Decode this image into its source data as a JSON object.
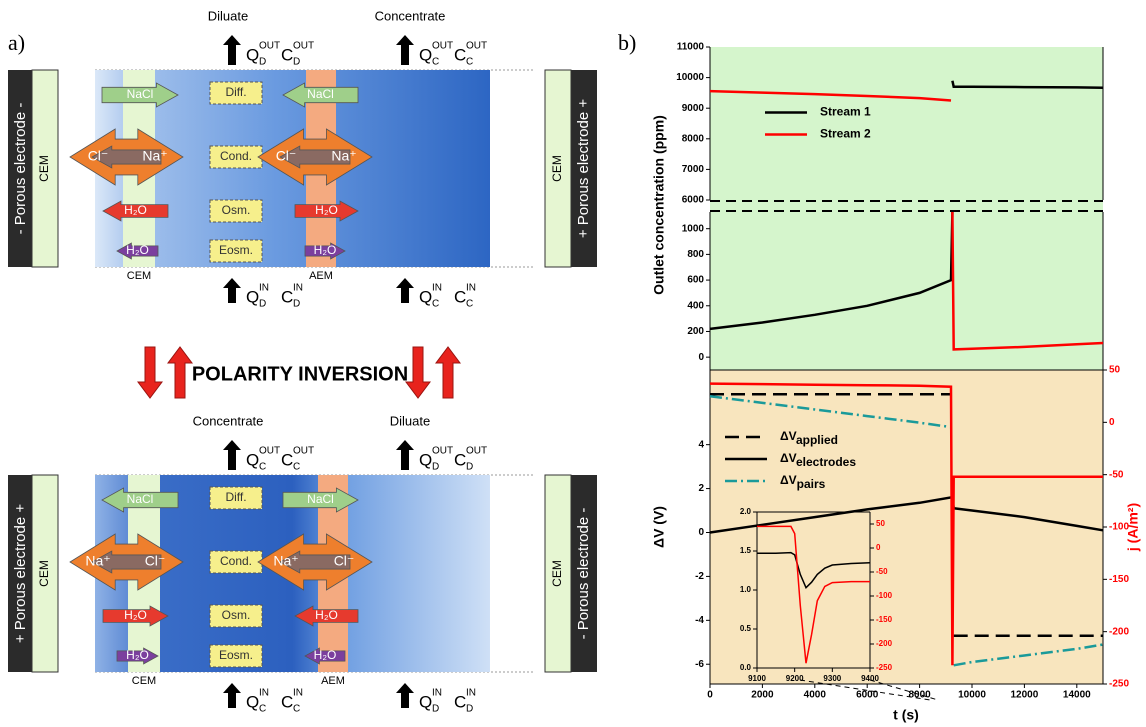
{
  "panel_a": {
    "label": "a)",
    "polarity_inversion": "POLARITY INVERSION",
    "top": {
      "outlets": [
        "Diluate",
        "Concentrate"
      ],
      "flows_out": [
        {
          "q": "Q",
          "c": "C",
          "sub": "D",
          "sup": "OUT"
        },
        {
          "q": "Q",
          "c": "C",
          "sub": "C",
          "sup": "OUT"
        }
      ],
      "flows_in": [
        {
          "q": "Q",
          "c": "C",
          "sub": "D",
          "sup": "IN"
        },
        {
          "q": "Q",
          "c": "C",
          "sub": "C",
          "sup": "IN"
        }
      ],
      "processes": [
        "Diff.",
        "Cond.",
        "Osm.",
        "Eosm."
      ],
      "membranes": [
        "CEM",
        "AEM"
      ],
      "left_electrode": {
        "name": "- Porous electrode -",
        "membrane": "CEM"
      },
      "right_electrode": {
        "name": "+ Porous electrode +",
        "membrane": "CEM"
      },
      "arrows": {
        "salt": [
          "NaCl",
          "NaCl"
        ],
        "ions_left": [
          "Cl⁻",
          "Na⁺"
        ],
        "ions_right": [
          "Cl⁻",
          "Na⁺"
        ],
        "water_osm": [
          "H₂O",
          "H₂O"
        ],
        "water_eosm": [
          "H₂O",
          "H₂O"
        ]
      }
    },
    "bottom": {
      "outlets": [
        "Concentrate",
        "Diluate"
      ],
      "flows_out": [
        {
          "q": "Q",
          "c": "C",
          "sub": "C",
          "sup": "OUT"
        },
        {
          "q": "Q",
          "c": "C",
          "sub": "D",
          "sup": "OUT"
        }
      ],
      "flows_in": [
        {
          "q": "Q",
          "c": "C",
          "sub": "C",
          "sup": "IN"
        },
        {
          "q": "Q",
          "c": "C",
          "sub": "D",
          "sup": "IN"
        }
      ],
      "processes": [
        "Diff.",
        "Cond.",
        "Osm.",
        "Eosm."
      ],
      "membranes": [
        "CEM",
        "AEM"
      ],
      "left_electrode": {
        "name": "+ Porous electrode +",
        "membrane": "CEM"
      },
      "right_electrode": {
        "name": "- Porous electrode -",
        "membrane": "CEM"
      },
      "arrows": {
        "salt": [
          "NaCl",
          "NaCl"
        ],
        "ions_left": [
          "Na⁺",
          "Cl⁻"
        ],
        "ions_right": [
          "Na⁺",
          "Cl⁻"
        ],
        "water_osm": [
          "H₂O",
          "H₂O"
        ],
        "water_eosm": [
          "H₂O",
          "H₂O"
        ]
      }
    }
  },
  "panel_b": {
    "label": "b)"
  },
  "chart_data": [
    {
      "type": "line",
      "y_label": "Outlet concentration (ppm)",
      "background": "#d5f5cc",
      "legend": "center left",
      "x": [
        0,
        2000,
        4000,
        6000,
        8000,
        9200,
        9250,
        9300,
        10000,
        12000,
        14000,
        15000
      ],
      "xlim": [
        0,
        15000
      ],
      "ylim": [
        6000,
        11000
      ],
      "yticks": [
        6000,
        7000,
        8000,
        9000,
        10000,
        11000
      ],
      "series": [
        {
          "name": "Stream 1",
          "color": "#000000",
          "values": [
            null,
            null,
            null,
            null,
            null,
            null,
            9900,
            9700,
            9700,
            9690,
            9680,
            9670
          ]
        },
        {
          "name": "Stream 2",
          "color": "#ff0000",
          "values": [
            9560,
            9510,
            9460,
            9400,
            9330,
            9250,
            null,
            null,
            null,
            null,
            null,
            null
          ]
        }
      ]
    },
    {
      "type": "line",
      "background": "#d5f5cc",
      "x": [
        0,
        2000,
        4000,
        6000,
        8000,
        9200,
        9250,
        9300,
        10000,
        12000,
        14000,
        15000
      ],
      "xlim": [
        0,
        15000
      ],
      "ylim": [
        -100,
        1130
      ],
      "yticks": [
        0,
        200,
        400,
        600,
        800,
        1000
      ],
      "series": [
        {
          "color": "#000000",
          "values": [
            220,
            270,
            330,
            400,
            500,
            600,
            1130,
            null,
            null,
            null,
            null,
            null
          ]
        },
        {
          "color": "#ff0000",
          "values": [
            null,
            null,
            null,
            null,
            null,
            null,
            1130,
            60,
            65,
            80,
            100,
            110
          ]
        }
      ]
    },
    {
      "type": "line",
      "y_label": "ΔV (V)",
      "y2_label": "j (A/m²)",
      "x_label": "t (s)",
      "background": "#f8e5be",
      "legend": "upper left",
      "x": [
        0,
        2000,
        4000,
        6000,
        8000,
        9200,
        9250,
        9300,
        10000,
        12000,
        14000,
        15000
      ],
      "xlim": [
        0,
        15000
      ],
      "xticks": [
        0,
        2000,
        4000,
        6000,
        8000,
        10000,
        12000,
        14000
      ],
      "ylim": [
        -6.9,
        7.4
      ],
      "yticks": [
        -6,
        -4,
        -2,
        0,
        2,
        4
      ],
      "y2lim": [
        -250,
        50
      ],
      "y2ticks": [
        50,
        0,
        -50,
        -100,
        -150,
        -200,
        -250
      ],
      "y2color": "#ff0000",
      "series": [
        {
          "name": "ΔVapplied",
          "color": "#000000",
          "style": "dashed",
          "values": [
            6.3,
            6.3,
            6.3,
            6.3,
            6.3,
            6.3,
            null,
            -4.7,
            -4.7,
            -4.7,
            -4.7,
            -4.7
          ]
        },
        {
          "name": "ΔVelectrodes",
          "color": "#000000",
          "style": "solid",
          "values": [
            0,
            0.35,
            0.7,
            1.05,
            1.35,
            1.6,
            1.55,
            1.1,
            1.0,
            0.7,
            0.3,
            0.1
          ]
        },
        {
          "name": "ΔVpairs",
          "color": "#1a9a9a",
          "style": "dashdot",
          "values": [
            6.2,
            5.9,
            5.6,
            5.3,
            5.0,
            4.8,
            null,
            -6.05,
            -5.9,
            -5.6,
            -5.3,
            -5.1
          ]
        },
        {
          "color": "#ff0000",
          "style": "solid",
          "axis": "y2",
          "values": [
            37,
            36.5,
            36,
            35.5,
            35,
            34,
            -232,
            -52,
            -52,
            -52,
            -52,
            -52
          ]
        }
      ]
    },
    {
      "type": "line",
      "x": [
        9100,
        9150,
        9190,
        9200,
        9215,
        9230,
        9245,
        9260,
        9280,
        9300,
        9350,
        9400
      ],
      "xlim": [
        9100,
        9400
      ],
      "xticks": [
        9100,
        9200,
        9300,
        9400
      ],
      "ylim": [
        0,
        2
      ],
      "yticks": [
        {
          "value": 0,
          "label": "0.0"
        },
        {
          "value": 0.5,
          "label": "0.5"
        },
        {
          "value": 1,
          "label": "1.0"
        },
        {
          "value": 1.5,
          "label": "1.5"
        },
        {
          "value": 2,
          "label": "2.0"
        }
      ],
      "y2lim": [
        -250,
        75
      ],
      "y2ticks": [
        50,
        0,
        -50,
        -100,
        -150,
        -200,
        -250
      ],
      "y2color": "#ff0000",
      "series": [
        {
          "color": "#000000",
          "style": "solid",
          "values": [
            1.47,
            1.47,
            1.48,
            1.45,
            1.2,
            1.03,
            1.1,
            1.2,
            1.28,
            1.32,
            1.34,
            1.35
          ]
        },
        {
          "color": "#ff0000",
          "style": "solid",
          "axis": "y2",
          "values": [
            45,
            45,
            45,
            30,
            -120,
            -240,
            -180,
            -110,
            -80,
            -72,
            -70,
            -70
          ]
        }
      ]
    }
  ]
}
